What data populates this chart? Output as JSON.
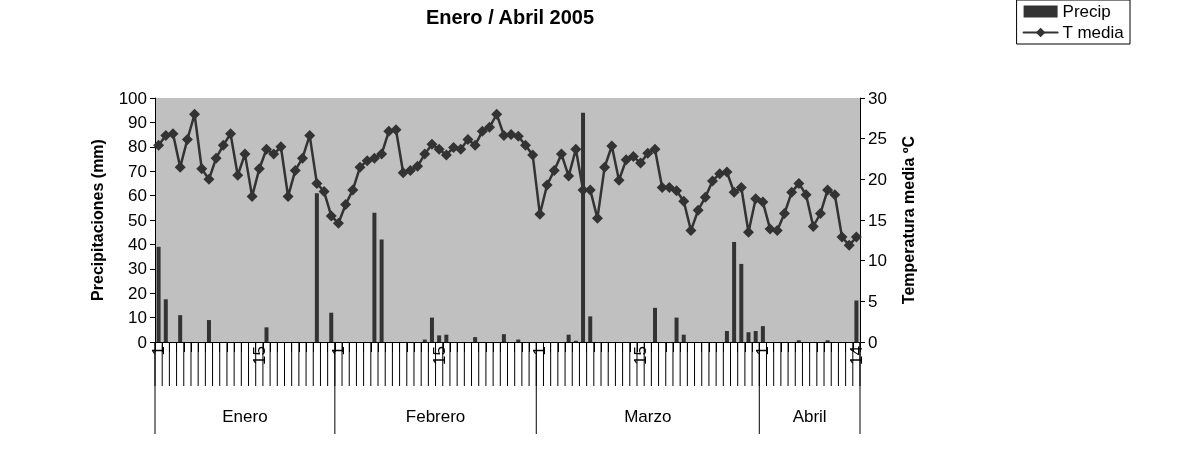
{
  "chart_data": {
    "type": "bar",
    "title": "Enero / Abril 2005",
    "ylabel": "Precipitaciones (mm)",
    "y2label": "Temperatura media ºC",
    "annotations": [
      "Enero",
      "Febrero",
      "Marzo",
      "Abril"
    ],
    "categories": [
      "1",
      null,
      null,
      null,
      null,
      null,
      null,
      null,
      null,
      null,
      null,
      null,
      null,
      null,
      "15",
      null,
      null,
      null,
      null,
      null,
      null,
      null,
      null,
      null,
      null,
      "1",
      null,
      null,
      null,
      null,
      null,
      null,
      null,
      null,
      null,
      null,
      null,
      null,
      null,
      "15",
      null,
      null,
      null,
      null,
      null,
      null,
      null,
      null,
      null,
      null,
      null,
      null,
      null,
      "1",
      null,
      null,
      null,
      null,
      null,
      null,
      null,
      null,
      null,
      null,
      null,
      null,
      null,
      "15",
      null,
      null,
      null,
      null,
      null,
      null,
      null,
      null,
      null,
      null,
      null,
      null,
      null,
      null,
      null,
      null,
      "1",
      null,
      null,
      null,
      null,
      null,
      null,
      null,
      null,
      null,
      null,
      null,
      null,
      "14"
    ],
    "series": [
      {
        "name": "Precip",
        "color": "#333333",
        "values": [
          39,
          17.5,
          0,
          11,
          0,
          0,
          0,
          9,
          0,
          0,
          0,
          0,
          0,
          0,
          0,
          6,
          0,
          0,
          0,
          0,
          0,
          0,
          61,
          0,
          12,
          0,
          0,
          0,
          0,
          0,
          53,
          42,
          0,
          0,
          0,
          0,
          0,
          1,
          10,
          2.7,
          3,
          0,
          0,
          0,
          2,
          0,
          0,
          0,
          3.2,
          0,
          1,
          0,
          0,
          0,
          0,
          0,
          0,
          3,
          0.5,
          94,
          10.5,
          0,
          0,
          0,
          0,
          0,
          0,
          0,
          0,
          14,
          0,
          0,
          10,
          3,
          0,
          0,
          0,
          0,
          0,
          4.5,
          41,
          32,
          4,
          4.5,
          6.5,
          0,
          0,
          0,
          0,
          0.7,
          0,
          0,
          0,
          0.7,
          0,
          0,
          0,
          17
        ]
      },
      {
        "name": "T media",
        "type": "line",
        "axis": "y2",
        "color": "#333333",
        "marker": "diamond",
        "values": [
          24.2,
          25.4,
          25.6,
          21.5,
          24.9,
          28,
          21.3,
          20,
          22.6,
          24.2,
          25.6,
          20.5,
          23.1,
          17.9,
          21.3,
          23.7,
          23.1,
          24,
          17.9,
          21.1,
          22.6,
          25.4,
          19.5,
          18.5,
          15.5,
          14.6,
          16.9,
          18.7,
          21.5,
          22.3,
          22.6,
          23.1,
          25.9,
          26.1,
          20.8,
          21.1,
          21.6,
          23.1,
          24.3,
          23.7,
          23,
          23.9,
          23.7,
          24.9,
          24.2,
          25.9,
          26.4,
          28,
          25.4,
          25.5,
          25.3,
          24.2,
          23,
          15.7,
          19.3,
          21.1,
          23.1,
          20.4,
          23.7,
          18.7,
          18.7,
          15.2,
          21.5,
          24.1,
          19.9,
          22.4,
          22.8,
          22,
          23.2,
          23.7,
          19,
          19,
          18.6,
          17.3,
          13.7,
          16.2,
          17.8,
          19.8,
          20.7,
          20.9,
          18.4,
          19,
          13.5,
          17.6,
          17.2,
          13.9,
          13.7,
          15.8,
          18.4,
          19.5,
          18.1,
          14.2,
          15.8,
          18.7,
          18.1,
          12.9,
          11.9,
          12.9
        ]
      }
    ],
    "ylim": [
      0,
      100
    ],
    "yticks": [
      0,
      10,
      20,
      30,
      40,
      50,
      60,
      70,
      80,
      90,
      100
    ],
    "y2lim": [
      0,
      30
    ],
    "y2ticks": [
      0,
      5,
      10,
      15,
      20,
      25,
      30
    ],
    "grid": false,
    "legend": "top right"
  }
}
